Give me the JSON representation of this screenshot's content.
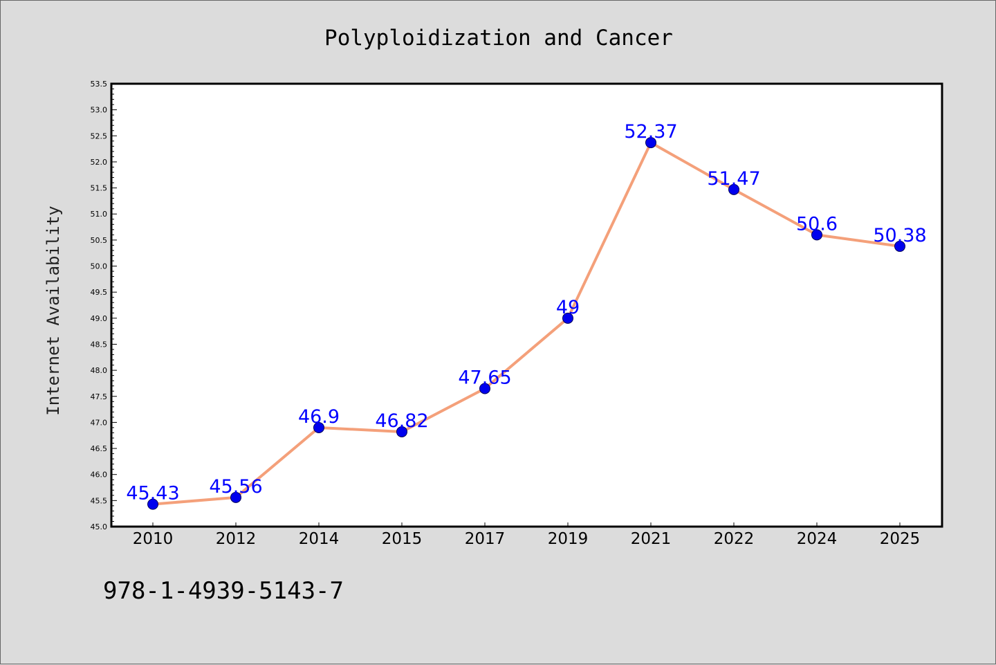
{
  "chart_data": {
    "type": "line",
    "title": "Polyploidization and Cancer",
    "xlabel": "",
    "ylabel": "Internet Availability",
    "categories": [
      "2010",
      "2012",
      "2014",
      "2015",
      "2017",
      "2019",
      "2021",
      "2022",
      "2024",
      "2025"
    ],
    "series": [
      {
        "values": [
          45.43,
          45.56,
          46.9,
          46.82,
          47.65,
          49,
          52.37,
          51.47,
          50.6,
          50.38
        ],
        "labels": [
          "45.43",
          "45.56",
          "46.9",
          "46.82",
          "47.65",
          "49",
          "52.37",
          "51.47",
          "50.6",
          "50.38"
        ]
      }
    ],
    "ylim": [
      45.0,
      53.5
    ],
    "yticks": [
      "45.0",
      "45.5",
      "46.0",
      "46.5",
      "47.0",
      "47.5",
      "48.0",
      "48.5",
      "49.0",
      "49.5",
      "50.0",
      "50.5",
      "51.0",
      "51.5",
      "52.0",
      "52.5",
      "53.0",
      "53.5"
    ],
    "grid": false,
    "legend": "none",
    "colors": {
      "line": "#f4a07a",
      "marker": "#0000ee",
      "data_label": "#0000ff",
      "plot_background": "#ffffff",
      "figure_background": "#dcdcdc"
    }
  },
  "footer": {
    "isbn": "978-1-4939-5143-7"
  }
}
